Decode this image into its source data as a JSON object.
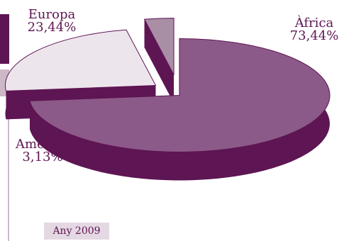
{
  "chart_data": {
    "type": "pie",
    "style": "3d-exploded",
    "slices": [
      {
        "name": "Àfrica",
        "value": 73.44,
        "value_label": "73,44%",
        "color": "#8c5a88",
        "side_color": "#5e1553"
      },
      {
        "name": "Europa",
        "value": 23.44,
        "value_label": "23,44%",
        "color": "#ede5ec",
        "side_color": "#5e1553"
      },
      {
        "name": "Amèrica",
        "value": 3.13,
        "value_label": "3,13%",
        "color": "#a98ea6",
        "side_color": "#5e1553"
      }
    ],
    "footnote": "Any 2009"
  },
  "colors": {
    "accent": "#5e1553",
    "light_accent": "#cdb8c8",
    "badge_bg": "#e4d8e2"
  }
}
